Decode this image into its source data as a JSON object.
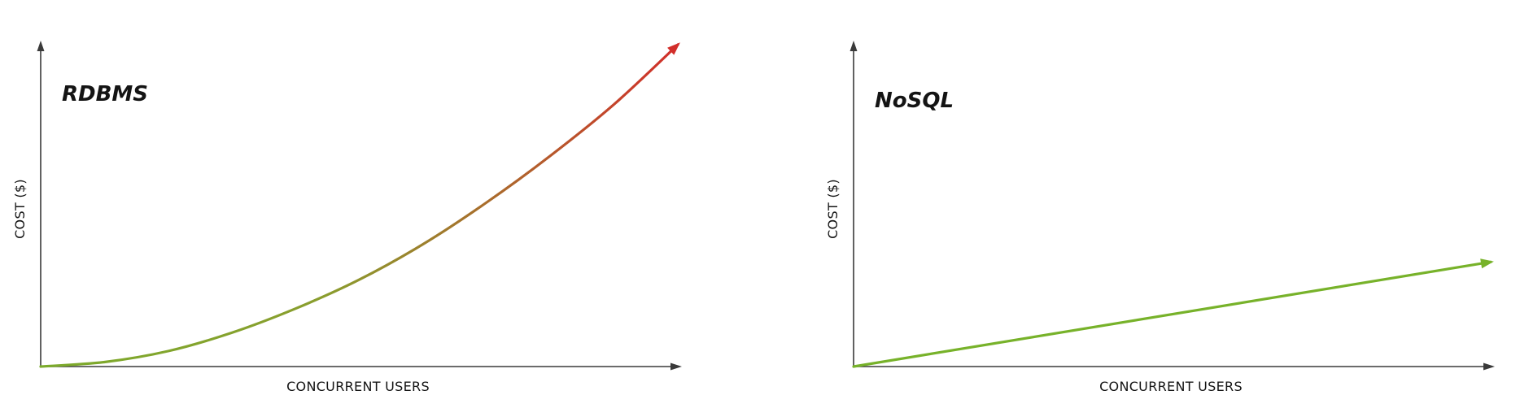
{
  "chart_data": [
    {
      "type": "line",
      "title": "RDBMS",
      "xlabel": "CONCURRENT USERS",
      "ylabel": "COST ($)",
      "x": [
        0,
        0.1,
        0.2,
        0.3,
        0.4,
        0.5,
        0.6,
        0.7,
        0.8,
        0.9,
        1.0
      ],
      "series": [
        {
          "values": [
            0,
            0.014,
            0.048,
            0.105,
            0.18,
            0.27,
            0.38,
            0.51,
            0.655,
            0.815,
            1.0
          ]
        }
      ],
      "xlim": [
        0,
        1
      ],
      "ylim": [
        0,
        1
      ],
      "grid": false,
      "gradient": [
        "#7cab2c",
        "#d22e2a"
      ]
    },
    {
      "type": "line",
      "title": "NoSQL",
      "xlabel": "CONCURRENT USERS",
      "ylabel": "COST ($)",
      "x": [
        0,
        1.0
      ],
      "series": [
        {
          "values": [
            0,
            0.325
          ]
        }
      ],
      "xlim": [
        0,
        1
      ],
      "ylim": [
        0,
        1
      ],
      "grid": false,
      "color": "#77b22a"
    }
  ],
  "colors": {
    "axis": "#3a3a3a",
    "text": "#141414"
  }
}
